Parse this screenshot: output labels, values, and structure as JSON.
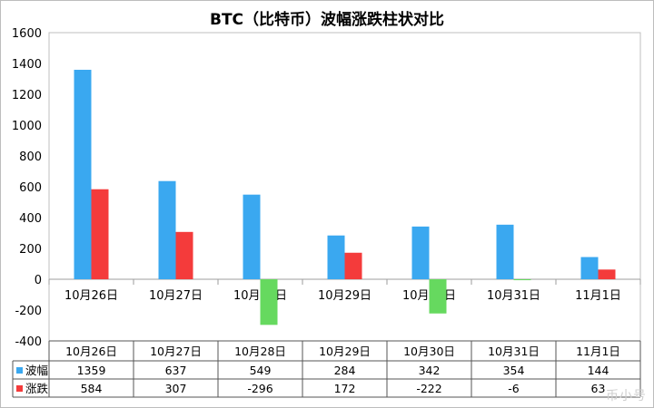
{
  "chart_data": {
    "type": "bar",
    "title": "BTC（比特币）波幅涨跌柱状对比",
    "categories": [
      "10月26日",
      "10月27日",
      "10月28日",
      "10月29日",
      "10月30日",
      "10月31日",
      "11月1日"
    ],
    "series": [
      {
        "name": "波幅",
        "values": [
          1359,
          637,
          549,
          284,
          342,
          354,
          144
        ],
        "color": "#3aa8f0"
      },
      {
        "name": "涨跌",
        "values": [
          584,
          307,
          -296,
          172,
          -222,
          -6,
          63
        ],
        "color": "#f43b3b",
        "negative_color": "#66d95f"
      }
    ],
    "table_display": [
      [
        "1359",
        "637",
        "549",
        "284",
        "342",
        "354",
        "144"
      ],
      [
        "584",
        "307",
        "-296",
        "172",
        "-222",
        "-6",
        "63"
      ]
    ],
    "ylim": [
      -400,
      1600
    ],
    "yticks": [
      "1600",
      "1400",
      "1200",
      "1000",
      "800",
      "600",
      "400",
      "200",
      "0",
      "-200",
      "-400"
    ],
    "grid": false,
    "legend": "data-table"
  },
  "watermark": "币小号"
}
